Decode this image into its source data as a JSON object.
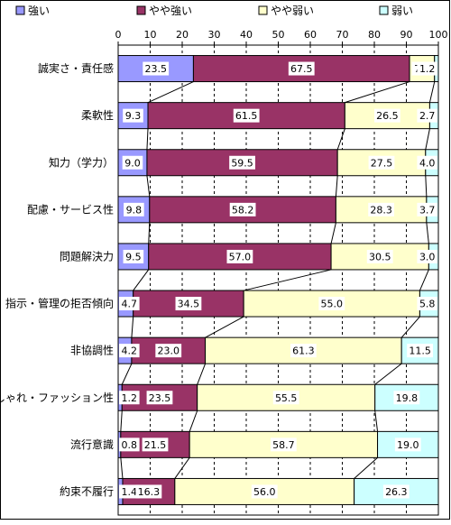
{
  "chart_data": {
    "type": "bar",
    "stacked": true,
    "orientation": "horizontal",
    "xlim": [
      0,
      100
    ],
    "x_ticks": [
      0,
      10,
      20,
      30,
      40,
      50,
      60,
      70,
      80,
      90,
      100
    ],
    "grid": "vertical-dashed",
    "legend_position": "top",
    "series_lines": true,
    "categories": [
      "誠実さ・責任感",
      "柔軟性",
      "知力（学力）",
      "配慮・サービス性",
      "問題解決力",
      "指示・管理の拒否傾向",
      "非協調性",
      "おしゃれ・ファッション性",
      "流行意識",
      "約束不履行"
    ],
    "series": [
      {
        "name": "強い",
        "color": "#9999ff",
        "values": [
          23.5,
          9.3,
          9.0,
          9.8,
          9.5,
          4.7,
          4.2,
          1.2,
          0.8,
          1.4
        ]
      },
      {
        "name": "やや強い",
        "color": "#993366",
        "values": [
          67.5,
          61.5,
          59.5,
          58.2,
          57.0,
          34.5,
          23.0,
          23.5,
          21.5,
          16.3
        ]
      },
      {
        "name": "やや弱い",
        "color": "#ffffcc",
        "values": [
          7.8,
          26.5,
          27.5,
          28.3,
          30.5,
          55.0,
          61.3,
          55.5,
          58.7,
          56.0
        ]
      },
      {
        "name": "弱い",
        "color": "#ccffff",
        "values": [
          1.2,
          2.7,
          4.0,
          3.7,
          3.0,
          5.8,
          11.5,
          19.8,
          19.0,
          26.3
        ]
      }
    ]
  }
}
